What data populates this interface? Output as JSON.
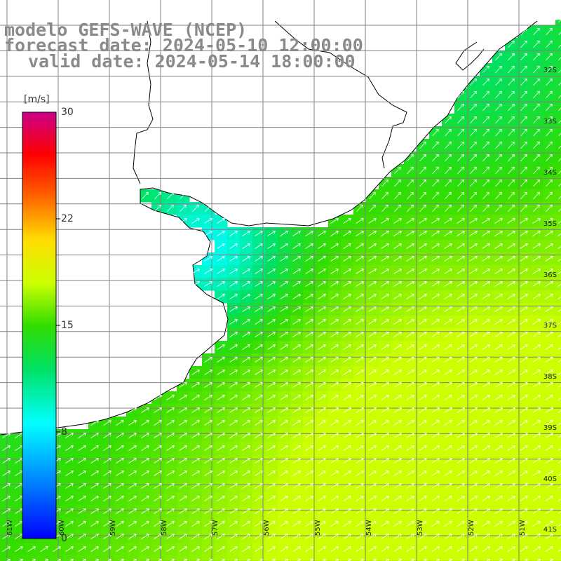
{
  "titles": {
    "line1": "modelo GEFS-WAVE (NCEP)",
    "line2": "forecast date: 2024-05-10 12:00:00",
    "line3": "valid date: 2024-05-14 18:00:00"
  },
  "colorbar": {
    "unit": "[m/s]",
    "ticks": [
      "30",
      "22",
      "15",
      "8",
      "0"
    ],
    "range": [
      0,
      30
    ]
  },
  "latitude_labels": [
    "32S",
    "33S",
    "34S",
    "35S",
    "36S",
    "37S",
    "38S",
    "39S",
    "40S",
    "41S"
  ],
  "longitude_labels": [
    "61W",
    "60W",
    "59W",
    "58W",
    "57W",
    "56W",
    "55W",
    "54W",
    "53W",
    "52W",
    "51W"
  ],
  "colors": {
    "land": "#ffffff",
    "coast": "#000000",
    "grid": "#808080",
    "arrows": "#ffffff"
  },
  "wind_field": {
    "variable": "wind speed",
    "units": "m/s",
    "dominant_direction": "from WSW/SW toward ENE/NE",
    "low_region": "Rio de la Plata estuary, ~5-7 m/s",
    "high_region": "south-east offshore, ~16-17 m/s"
  }
}
